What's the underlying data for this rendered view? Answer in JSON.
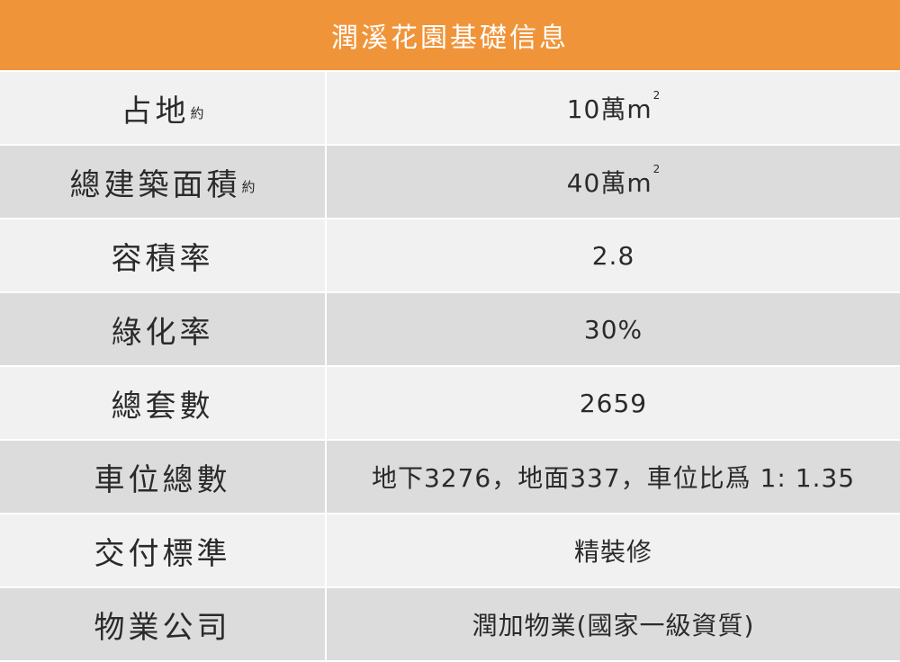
{
  "table": {
    "title": "潤溪花園基礎信息",
    "rows": [
      {
        "label": "占地",
        "note": "約",
        "value": "10萬m",
        "value_sup": "2"
      },
      {
        "label": "總建築面積",
        "note": "約",
        "value": "40萬m",
        "value_sup": "2"
      },
      {
        "label": "容積率",
        "value": "2.8"
      },
      {
        "label": "綠化率",
        "value": "30%"
      },
      {
        "label": "總套數",
        "value": "2659"
      },
      {
        "label": "車位總數",
        "value": "地下3276，地面337，車位比爲 1: 1.35"
      },
      {
        "label": "交付標準",
        "value": "精裝修"
      },
      {
        "label": "物業公司",
        "value": "潤加物業(國家一級資質)"
      }
    ]
  },
  "colors": {
    "header_bg": "#f0943a",
    "header_text": "#ffffff",
    "row_light": "#f1f1f1",
    "row_dark": "#dcdcdc",
    "text": "#2a2a2a"
  }
}
